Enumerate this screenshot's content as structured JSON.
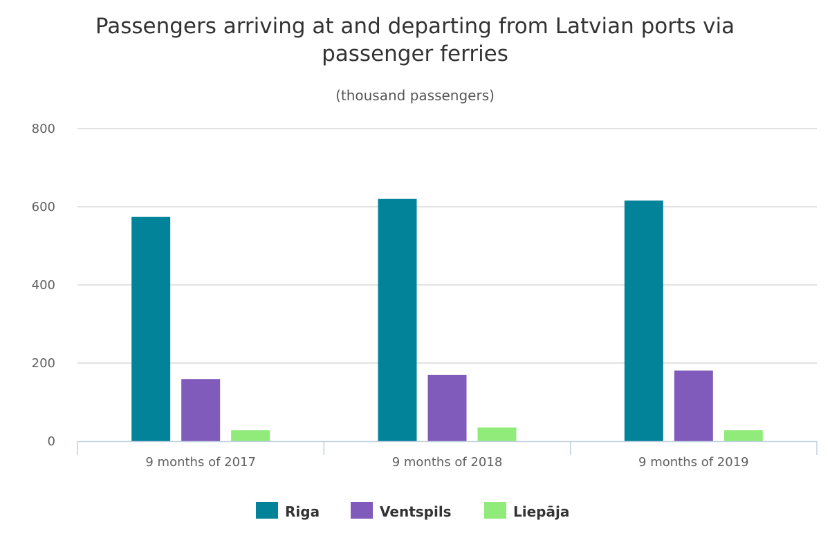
{
  "chart_data": {
    "type": "bar",
    "title": "Passengers arriving at and departing from Latvian ports via passenger ferries",
    "title_lines": [
      "Passengers arriving at and departing from Latvian ports via",
      "passenger ferries"
    ],
    "subtitle": "(thousand passengers)",
    "xlabel": "",
    "ylabel": "",
    "categories": [
      "9 months of 2017",
      "9 months of 2018",
      "9 months of 2019"
    ],
    "ylim": [
      0,
      800
    ],
    "yticks": [
      0,
      200,
      400,
      600,
      800
    ],
    "ytick_labels": [
      "0",
      "200",
      "400",
      "600",
      "800"
    ],
    "grid": true,
    "legend_position": "bottom-center",
    "series": [
      {
        "name": "Riga",
        "color": "#02839a",
        "values": [
          574,
          620,
          616
        ]
      },
      {
        "name": "Ventspils",
        "color": "#805bbb",
        "values": [
          159,
          170,
          181
        ]
      },
      {
        "name": "Liepāja",
        "color": "#90eb7a",
        "values": [
          28,
          35,
          28
        ]
      }
    ]
  }
}
